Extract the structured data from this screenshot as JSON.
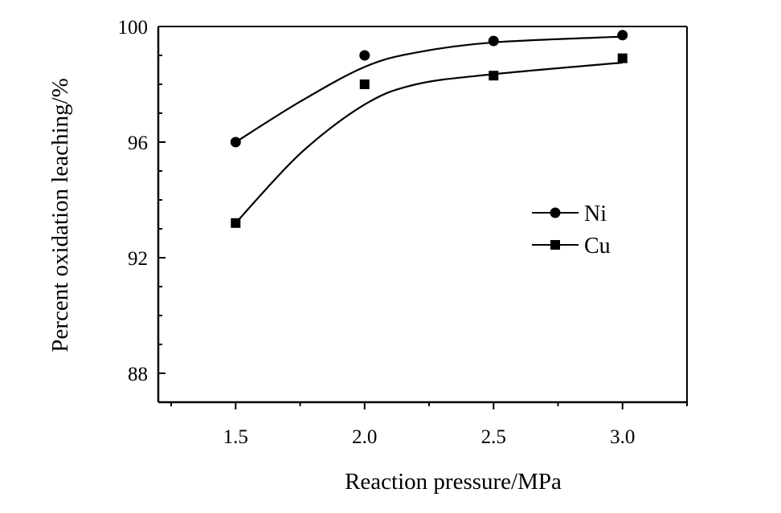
{
  "chart_data": {
    "type": "line",
    "title": "",
    "xlabel": "Reaction pressure/MPa",
    "ylabel": "Percent oxidation leaching/%",
    "xlim": [
      1.2,
      3.25
    ],
    "ylim": [
      87,
      100
    ],
    "x_ticks": [
      "1.5",
      "2.0",
      "2.5",
      "3.0"
    ],
    "y_ticks": [
      "88",
      "92",
      "96",
      "100"
    ],
    "grid": false,
    "legend_position": "right-center",
    "series": [
      {
        "name": "Ni",
        "marker": "circle",
        "x": [
          1.5,
          2.0,
          2.5,
          3.0
        ],
        "y": [
          96.0,
          99.0,
          99.5,
          99.7
        ]
      },
      {
        "name": "Cu",
        "marker": "square",
        "x": [
          1.5,
          2.0,
          2.5,
          3.0
        ],
        "y": [
          93.2,
          98.0,
          98.3,
          98.9
        ]
      }
    ],
    "curves": [
      {
        "series": "Ni",
        "x": [
          1.5,
          1.75,
          2.0,
          2.2,
          2.5,
          3.0
        ],
        "y": [
          96.0,
          97.4,
          98.6,
          99.1,
          99.45,
          99.65
        ]
      },
      {
        "series": "Cu",
        "x": [
          1.5,
          1.75,
          2.0,
          2.2,
          2.5,
          3.0
        ],
        "y": [
          93.2,
          95.6,
          97.3,
          98.0,
          98.35,
          98.75
        ]
      }
    ]
  }
}
